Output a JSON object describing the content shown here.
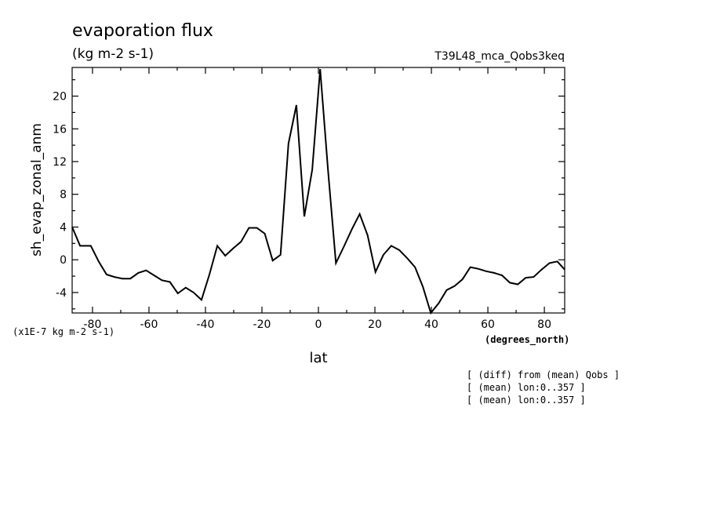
{
  "title": "evaporation flux",
  "units": "(kg m-2 s-1)",
  "run_id": "T39L48_mca_Qobs3keq",
  "scale_note": "(x1E-7 kg m-2 s-1)",
  "x_unit_note": "(degrees_north)",
  "notes": [
    "[ (diff) from (mean) Qobs ]",
    "[ (mean) lon:0..357 ]",
    "[ (mean) lon:0..357 ]"
  ],
  "chart_data": {
    "type": "line",
    "title": "evaporation flux",
    "xlabel": "lat",
    "ylabel": "sh_evap_zonal_anm",
    "xlim": [
      -87.2,
      87.2
    ],
    "ylim": [
      -6.5,
      23.5
    ],
    "xticks": [
      -80,
      -60,
      -40,
      -20,
      0,
      20,
      40,
      60,
      80
    ],
    "yticks": [
      -4,
      0,
      4,
      8,
      12,
      16,
      20
    ],
    "grid": false,
    "series": [
      {
        "x": [
          -87.2,
          -84.4,
          -80.6,
          -77.8,
          -75.0,
          -72.2,
          -69.4,
          -66.6,
          -63.8,
          -61.0,
          -58.2,
          -55.4,
          -52.6,
          -49.8,
          -47.0,
          -44.2,
          -41.4,
          -38.6,
          -35.8,
          -33.0,
          -30.2,
          -27.4,
          -24.6,
          -21.8,
          -19.0,
          -16.2,
          -13.4,
          -10.6,
          -7.8,
          -5.0,
          -2.2,
          0.6,
          3.4,
          6.2,
          9.0,
          11.8,
          14.6,
          17.4,
          20.2,
          23.0,
          25.8,
          28.6,
          31.4,
          34.2,
          37.0,
          39.8,
          42.6,
          45.4,
          48.2,
          51.0,
          53.8,
          56.6,
          59.4,
          62.2,
          65.0,
          67.8,
          70.6,
          73.4,
          76.2,
          79.0,
          81.8,
          84.6,
          87.2
        ],
        "y": [
          4.0,
          1.7,
          1.7,
          -0.2,
          -1.8,
          -2.1,
          -2.3,
          -2.3,
          -1.6,
          -1.3,
          -1.9,
          -2.5,
          -2.7,
          -4.1,
          -3.4,
          -4.0,
          -4.9,
          -1.8,
          1.7,
          0.5,
          1.4,
          2.2,
          3.9,
          3.9,
          3.2,
          -0.1,
          0.6,
          14.2,
          18.9,
          5.3,
          11.0,
          23.3,
          11.0,
          -0.4,
          1.6,
          3.7,
          5.6,
          3.0,
          -1.5,
          0.6,
          1.7,
          1.2,
          0.2,
          -0.9,
          -3.3,
          -6.6,
          -5.3,
          -3.7,
          -3.2,
          -2.4,
          -0.9,
          -1.1,
          -1.4,
          -1.6,
          -1.9,
          -2.8,
          -3.0,
          -2.2,
          -2.1,
          -1.2,
          -0.4,
          -0.2,
          -1.2
        ]
      }
    ]
  }
}
